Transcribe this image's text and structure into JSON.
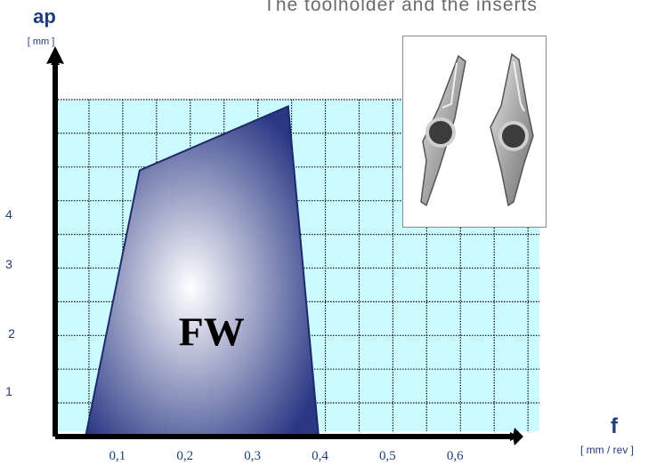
{
  "header": {
    "title_fragment": "The toolholder and the inserts"
  },
  "colors": {
    "grid_fill": "#ccfbff",
    "grid_line": "#111111",
    "axis": "#000000",
    "region_edge": "#1f2a6b",
    "region_dark": "#2a3784",
    "region_light": "#ffffff",
    "axis_title": "#1e3d7a",
    "tick_label": "#1e3d7a"
  },
  "chart_data": {
    "type": "area",
    "xlabel": "f",
    "xunit": "[ mm / rev ]",
    "ylabel": "ap",
    "yunit": "[ mm ]",
    "x_ticks": [
      "0,1",
      "0,2",
      "0,3",
      "0,4",
      "0,5",
      "0,6"
    ],
    "x_tick_values": [
      0.1,
      0.2,
      0.3,
      0.4,
      0.5,
      0.6
    ],
    "y_ticks": [
      "1",
      "2",
      "3",
      "4"
    ],
    "y_tick_values": [
      1,
      2,
      3,
      4
    ],
    "xlim": [
      0,
      0.68
    ],
    "ylim": [
      0,
      5
    ],
    "grid": true,
    "series": [
      {
        "name": "FW",
        "polygon": [
          {
            "x": 0.045,
            "y": 0.0
          },
          {
            "x": 0.125,
            "y": 3.95
          },
          {
            "x": 0.345,
            "y": 4.9
          },
          {
            "x": 0.39,
            "y": 0.0
          }
        ]
      }
    ]
  },
  "image": {
    "icon": "insert-photo-icon"
  }
}
